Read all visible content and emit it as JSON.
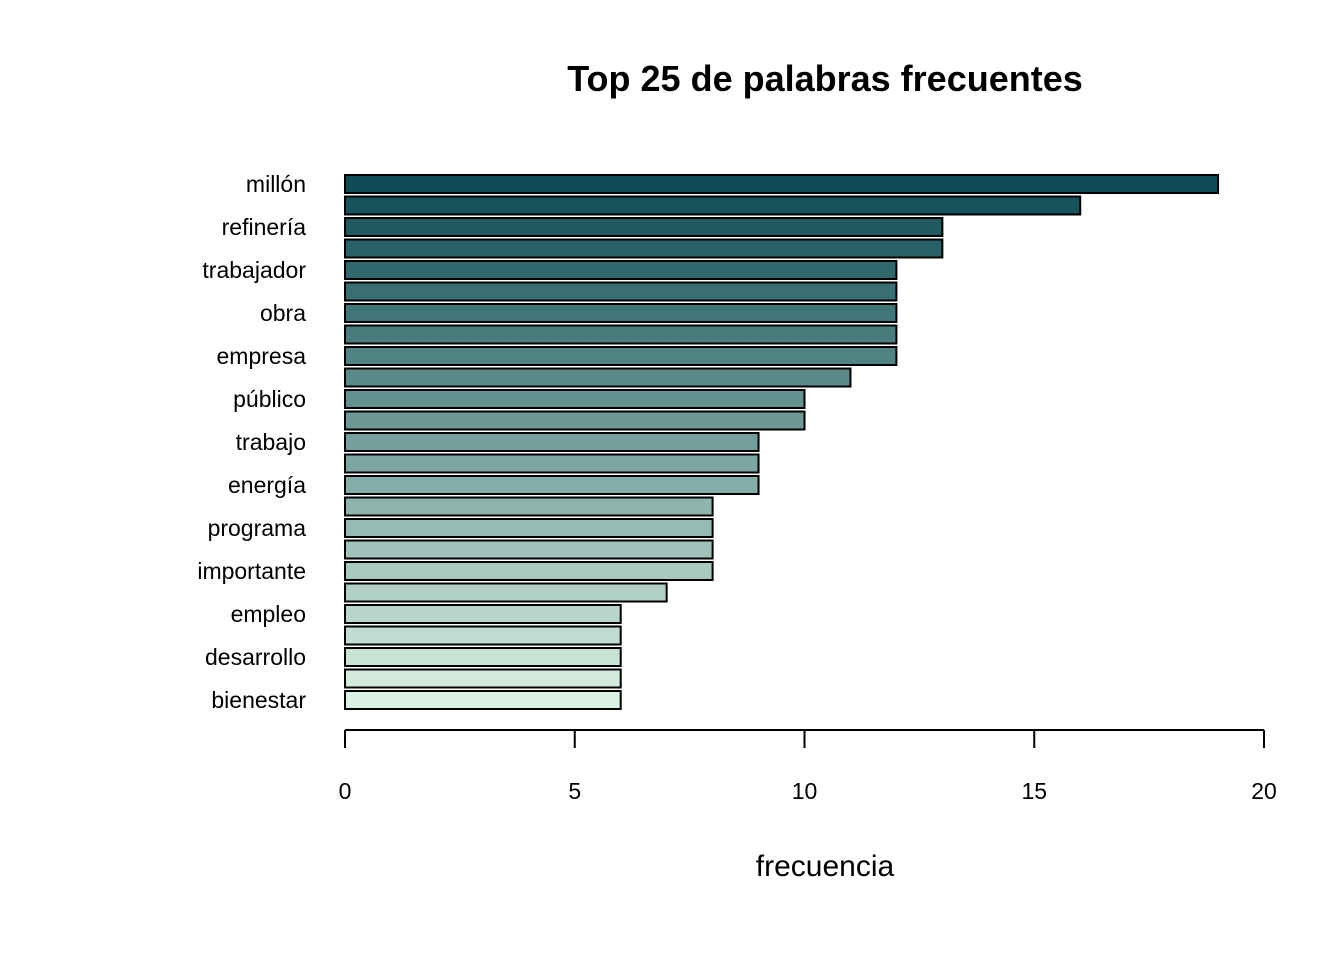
{
  "chart_data": {
    "type": "bar",
    "orientation": "horizontal",
    "title": "Top 25 de palabras frecuentes",
    "xlabel": "frecuencia",
    "ylabel": "",
    "xlim": [
      0,
      20
    ],
    "x_ticks": [
      0,
      5,
      10,
      15,
      20
    ],
    "grid": false,
    "categories_top_to_bottom": [
      "millón",
      "",
      "refinería",
      "",
      "trabajador",
      "",
      "obra",
      "",
      "empresa",
      "",
      "público",
      "",
      "trabajo",
      "",
      "energía",
      "",
      "programa",
      "",
      "importante",
      "",
      "empleo",
      "",
      "desarrollo",
      "",
      "bienestar"
    ],
    "values_top_to_bottom": [
      19,
      16,
      13,
      13,
      12,
      12,
      12,
      12,
      12,
      11,
      10,
      10,
      9,
      9,
      9,
      8,
      8,
      8,
      8,
      7,
      6,
      6,
      6,
      6,
      6
    ],
    "colors": {
      "dark": "#0e4c55",
      "light": "#daf2e3",
      "bar_outline": "#000000"
    }
  }
}
